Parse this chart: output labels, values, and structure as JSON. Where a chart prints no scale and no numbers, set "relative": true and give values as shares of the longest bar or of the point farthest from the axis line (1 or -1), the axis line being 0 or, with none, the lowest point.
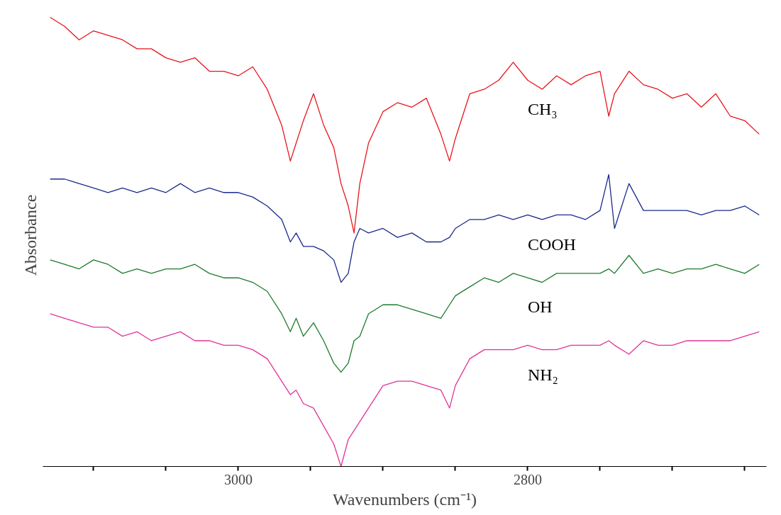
{
  "chart_data": {
    "type": "line",
    "relative": true,
    "xlabel": "Wavenumbers (cm⁻¹)",
    "ylabel": "Absorbance",
    "xlim": [
      3135,
      2635
    ],
    "xticks": [
      {
        "value": 3100,
        "label": null
      },
      {
        "value": 3050,
        "label": null
      },
      3000,
      {
        "value": 2950,
        "label": null
      },
      {
        "value": 2900,
        "label": null
      },
      {
        "value": 2850,
        "label": null
      },
      2800,
      {
        "value": 2750,
        "label": null
      },
      {
        "value": 2700,
        "label": null
      },
      {
        "value": 2650,
        "label": null
      }
    ],
    "x": [
      3130,
      3120,
      3110,
      3100,
      3090,
      3080,
      3070,
      3060,
      3050,
      3040,
      3030,
      3020,
      3010,
      3000,
      2990,
      2980,
      2970,
      2964,
      2960,
      2955,
      2948,
      2941,
      2934,
      2929,
      2924,
      2920,
      2916,
      2910,
      2900,
      2890,
      2880,
      2870,
      2860,
      2854,
      2850,
      2840,
      2830,
      2820,
      2810,
      2800,
      2790,
      2780,
      2770,
      2760,
      2750,
      2744,
      2740,
      2730,
      2720,
      2710,
      2700,
      2690,
      2680,
      2670,
      2660,
      2650,
      2640
    ],
    "grid": false,
    "legend": false,
    "marker": "none",
    "line_style": "solid",
    "series": [
      {
        "name": "CH₃",
        "color": "#e8151b",
        "values": [
          1.0,
          0.98,
          0.95,
          0.97,
          0.96,
          0.95,
          0.93,
          0.93,
          0.91,
          0.9,
          0.91,
          0.88,
          0.88,
          0.87,
          0.89,
          0.84,
          0.76,
          0.68,
          0.72,
          0.77,
          0.83,
          0.76,
          0.71,
          0.63,
          0.58,
          0.52,
          0.63,
          0.72,
          0.79,
          0.81,
          0.8,
          0.82,
          0.74,
          0.68,
          0.73,
          0.83,
          0.84,
          0.86,
          0.9,
          0.86,
          0.84,
          0.87,
          0.85,
          0.87,
          0.88,
          0.78,
          0.83,
          0.88,
          0.85,
          0.84,
          0.82,
          0.83,
          0.8,
          0.83,
          0.78,
          0.77,
          0.74
        ]
      },
      {
        "name": "COOH",
        "color": "#1a2a8c",
        "values": [
          0.64,
          0.64,
          0.63,
          0.62,
          0.61,
          0.62,
          0.61,
          0.62,
          0.61,
          0.63,
          0.61,
          0.62,
          0.61,
          0.61,
          0.6,
          0.58,
          0.55,
          0.5,
          0.52,
          0.49,
          0.49,
          0.48,
          0.46,
          0.41,
          0.43,
          0.5,
          0.53,
          0.52,
          0.53,
          0.51,
          0.52,
          0.5,
          0.5,
          0.51,
          0.53,
          0.55,
          0.55,
          0.56,
          0.55,
          0.56,
          0.55,
          0.56,
          0.56,
          0.55,
          0.57,
          0.65,
          0.53,
          0.63,
          0.57,
          0.57,
          0.57,
          0.57,
          0.56,
          0.57,
          0.57,
          0.58,
          0.56
        ]
      },
      {
        "name": "OH",
        "color": "#1e7a2e",
        "values": [
          0.46,
          0.45,
          0.44,
          0.46,
          0.45,
          0.43,
          0.44,
          0.43,
          0.44,
          0.44,
          0.45,
          0.43,
          0.42,
          0.42,
          0.41,
          0.39,
          0.34,
          0.3,
          0.33,
          0.29,
          0.32,
          0.28,
          0.23,
          0.21,
          0.23,
          0.28,
          0.29,
          0.34,
          0.36,
          0.36,
          0.35,
          0.34,
          0.33,
          0.36,
          0.38,
          0.4,
          0.42,
          0.41,
          0.43,
          0.42,
          0.41,
          0.43,
          0.43,
          0.43,
          0.43,
          0.44,
          0.43,
          0.47,
          0.43,
          0.44,
          0.43,
          0.44,
          0.44,
          0.45,
          0.44,
          0.43,
          0.45
        ]
      },
      {
        "name": "NH₂",
        "color": "#e0339a",
        "values": [
          0.34,
          0.33,
          0.32,
          0.31,
          0.31,
          0.29,
          0.3,
          0.28,
          0.29,
          0.3,
          0.28,
          0.28,
          0.27,
          0.27,
          0.26,
          0.24,
          0.19,
          0.16,
          0.17,
          0.14,
          0.13,
          0.09,
          0.05,
          0.0,
          0.06,
          0.08,
          0.1,
          0.13,
          0.18,
          0.19,
          0.19,
          0.18,
          0.17,
          0.13,
          0.18,
          0.24,
          0.26,
          0.26,
          0.26,
          0.27,
          0.26,
          0.26,
          0.27,
          0.27,
          0.27,
          0.28,
          0.27,
          0.25,
          0.28,
          0.27,
          0.27,
          0.28,
          0.28,
          0.28,
          0.28,
          0.29,
          0.3
        ]
      }
    ]
  }
}
